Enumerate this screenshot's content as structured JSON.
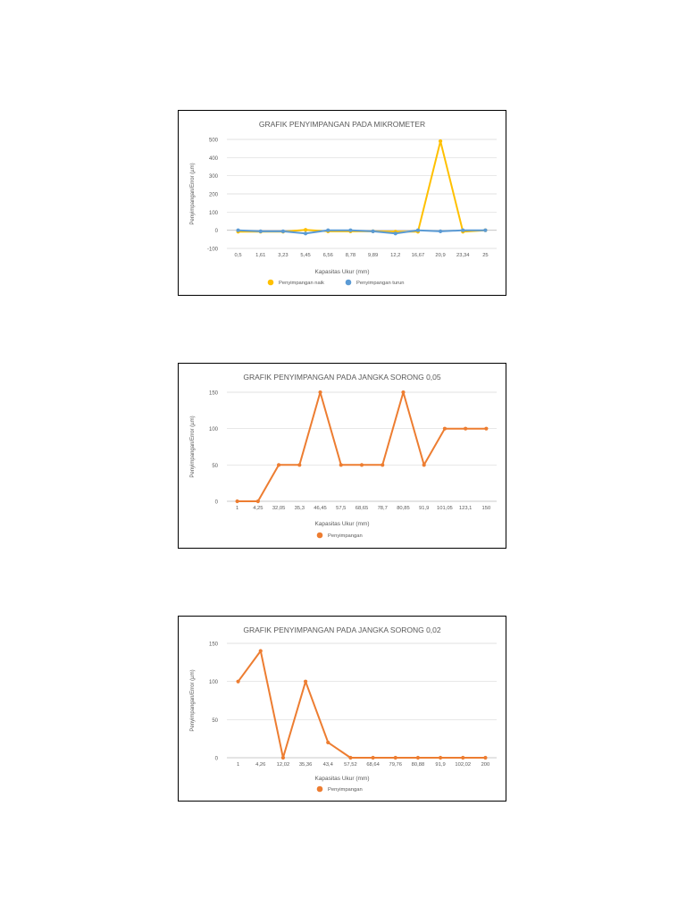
{
  "chart_data": [
    {
      "type": "line",
      "title": "GRAFIK PENYIMPANGAN PADA MIKROMETER",
      "xlabel": "Kapasitas Ukur (mm)",
      "ylabel": "Penyimpangan/Error (µm)",
      "ylim": [
        -100,
        500
      ],
      "yticks": [
        -100,
        0,
        100,
        200,
        300,
        400,
        500
      ],
      "grid": true,
      "legend": "bottom",
      "categories": [
        "0,5",
        "1,61",
        "3,23",
        "5,45",
        "6,56",
        "8,78",
        "9,89",
        "12,2",
        "16,67",
        "20,9",
        "23,34",
        "25"
      ],
      "series": [
        {
          "name": "Penyimpangan naik",
          "color": "#FFC000",
          "values": [
            -8,
            -8,
            -8,
            2,
            -6,
            -6,
            -6,
            -8,
            -8,
            490,
            -8,
            0
          ]
        },
        {
          "name": "Penyimpangan turun",
          "color": "#5B9BD5",
          "values": [
            0,
            -6,
            -6,
            -18,
            0,
            0,
            -6,
            -18,
            0,
            -6,
            0,
            0
          ]
        }
      ]
    },
    {
      "type": "line",
      "title": "GRAFIK PENYIMPANGAN PADA JANGKA SORONG 0,05",
      "xlabel": "Kapasitas Ukur (mm)",
      "ylabel": "Penyimpangan/Error (µm)",
      "ylim": [
        0,
        150
      ],
      "yticks": [
        0,
        50,
        100,
        150
      ],
      "grid": true,
      "legend": "bottom",
      "categories": [
        "1",
        "4,25",
        "32,05",
        "35,3",
        "46,45",
        "57,5",
        "68,65",
        "78,7",
        "80,85",
        "91,9",
        "101,05",
        "123,1",
        "150"
      ],
      "series": [
        {
          "name": "Penyimpangan",
          "color": "#ED7D31",
          "values": [
            0,
            0,
            50,
            50,
            150,
            50,
            50,
            50,
            150,
            50,
            100,
            100,
            100
          ]
        }
      ]
    },
    {
      "type": "line",
      "title": "GRAFIK PENYIMPANGAN PADA JANGKA SORONG 0,02",
      "xlabel": "Kapasitas Ukur (mm)",
      "ylabel": "Penyimpangan/Error (µm)",
      "ylim": [
        0,
        150
      ],
      "yticks": [
        0,
        50,
        100,
        150
      ],
      "grid": true,
      "legend": "bottom",
      "categories": [
        "1",
        "4,26",
        "12,02",
        "35,36",
        "43,4",
        "57,52",
        "68,64",
        "79,76",
        "80,88",
        "91,9",
        "102,02",
        "200"
      ],
      "series": [
        {
          "name": "Penyimpangan",
          "color": "#ED7D31",
          "values": [
            100,
            140,
            0,
            100,
            20,
            0,
            0,
            0,
            0,
            0,
            0,
            0
          ]
        }
      ]
    }
  ]
}
